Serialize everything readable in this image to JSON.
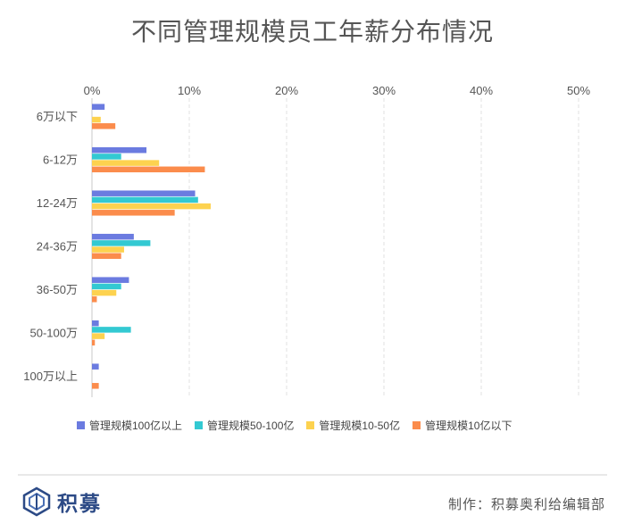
{
  "title": "不同管理规模员工年薪分布情况",
  "footer": {
    "logo_text": "积募",
    "credit": "制作：积募奥利给编辑部"
  },
  "chart_data": {
    "type": "bar",
    "orientation": "horizontal",
    "title": "不同管理规模员工年薪分布情况",
    "xlabel": "",
    "ylabel": "",
    "xlim": [
      0,
      50
    ],
    "x_ticks": [
      "0%",
      "10%",
      "20%",
      "30%",
      "40%",
      "50%"
    ],
    "x_tick_values": [
      0,
      10,
      20,
      30,
      40,
      50
    ],
    "grid": true,
    "legend_position": "bottom",
    "categories": [
      "6万以下",
      "6-12万",
      "12-24万",
      "24-36万",
      "36-50万",
      "50-100万",
      "100万以上"
    ],
    "series": [
      {
        "name": "管理规模100亿以上",
        "color": "#6b7be0",
        "values": [
          1.3,
          5.6,
          10.6,
          4.3,
          3.8,
          0.7,
          0.7
        ]
      },
      {
        "name": "管理规模50-100亿",
        "color": "#33c9d2",
        "values": [
          0.0,
          3.0,
          10.9,
          6.0,
          3.0,
          4.0,
          0.0
        ]
      },
      {
        "name": "管理规模10-50亿",
        "color": "#fdd24f",
        "values": [
          0.9,
          6.9,
          12.2,
          3.3,
          2.5,
          1.3,
          0.0
        ]
      },
      {
        "name": "管理规模10亿以下",
        "color": "#fb8c4c",
        "values": [
          2.4,
          11.6,
          8.5,
          3.0,
          0.5,
          0.3,
          0.7
        ]
      }
    ]
  }
}
